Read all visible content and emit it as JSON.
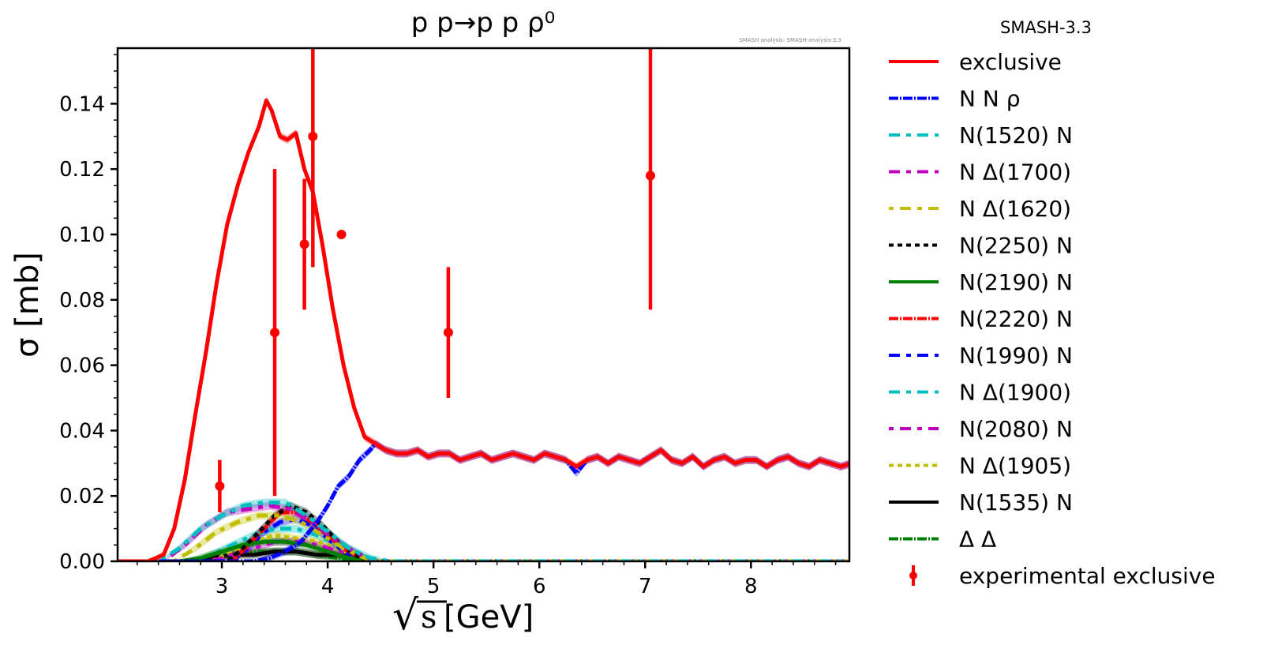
{
  "chart_data": {
    "type": "line",
    "title": "p p→p p ρ⁰",
    "watermark": "SMASH analysis: SMASH-analysis-3.3",
    "xlabel_radical": "√",
    "xlabel_var": "s",
    "xlabel_unit": "[GeV]",
    "ylabel": "σ [mb]",
    "xlim": [
      2.015,
      8.93
    ],
    "ylim": [
      0.0,
      0.157
    ],
    "x_ticks": [
      3,
      4,
      5,
      6,
      7,
      8
    ],
    "x_tick_labels": [
      "3",
      "4",
      "5",
      "6",
      "7",
      "8"
    ],
    "x_minor_step": 0.2,
    "y_ticks": [
      0.0,
      0.02,
      0.04,
      0.06,
      0.08,
      0.1,
      0.12,
      0.14
    ],
    "y_tick_labels": [
      "0.00",
      "0.02",
      "0.04",
      "0.06",
      "0.08",
      "0.10",
      "0.12",
      "0.14"
    ],
    "y_minor_step": 0.005,
    "grid": false,
    "legend_title": "SMASH-3.3",
    "legend_placement": "outside-right",
    "series": [
      {
        "name": "exclusive",
        "color": "#ff0000",
        "dash": "solid",
        "x": [
          2.0,
          2.3,
          2.45,
          2.55,
          2.65,
          2.75,
          2.85,
          2.95,
          3.05,
          3.15,
          3.25,
          3.35,
          3.42,
          3.47,
          3.55,
          3.62,
          3.7,
          3.78,
          3.86,
          3.95,
          4.05,
          4.15,
          4.25,
          4.35,
          4.45,
          4.55,
          4.65,
          4.75,
          4.85,
          4.95,
          5.05,
          5.15,
          5.25,
          5.35,
          5.45,
          5.55,
          5.65,
          5.75,
          5.85,
          5.95,
          6.05,
          6.15,
          6.25,
          6.35,
          6.45,
          6.55,
          6.65,
          6.75,
          6.85,
          6.95,
          7.05,
          7.15,
          7.25,
          7.35,
          7.45,
          7.55,
          7.65,
          7.75,
          7.85,
          7.95,
          8.05,
          8.15,
          8.25,
          8.35,
          8.45,
          8.55,
          8.65,
          8.75,
          8.85,
          8.95
        ],
        "y": [
          0.0,
          0.0,
          0.002,
          0.01,
          0.025,
          0.045,
          0.064,
          0.085,
          0.103,
          0.115,
          0.125,
          0.133,
          0.141,
          0.138,
          0.13,
          0.129,
          0.131,
          0.12,
          0.113,
          0.097,
          0.077,
          0.06,
          0.047,
          0.038,
          0.036,
          0.034,
          0.033,
          0.033,
          0.034,
          0.032,
          0.033,
          0.033,
          0.031,
          0.032,
          0.033,
          0.031,
          0.032,
          0.033,
          0.032,
          0.031,
          0.033,
          0.032,
          0.031,
          0.029,
          0.031,
          0.032,
          0.03,
          0.032,
          0.031,
          0.03,
          0.032,
          0.034,
          0.031,
          0.03,
          0.032,
          0.029,
          0.031,
          0.032,
          0.03,
          0.031,
          0.031,
          0.029,
          0.031,
          0.032,
          0.03,
          0.029,
          0.031,
          0.03,
          0.029,
          0.03
        ]
      },
      {
        "name": "N N ρ",
        "color": "#0000ff",
        "dash": "12 2 2 2",
        "x": [
          2.0,
          3.3,
          3.45,
          3.6,
          3.75,
          3.9,
          4.0,
          4.1,
          4.2,
          4.3,
          4.4,
          4.45,
          4.55,
          4.65,
          4.75,
          4.85,
          4.95,
          5.05,
          5.15,
          5.25,
          5.35,
          5.45,
          5.55,
          5.65,
          5.75,
          5.85,
          5.95,
          6.05,
          6.15,
          6.25,
          6.35,
          6.45,
          6.55,
          6.65,
          6.75,
          6.85,
          6.95,
          7.05,
          7.15,
          7.25,
          7.35,
          7.45,
          7.55,
          7.65,
          7.75,
          7.85,
          7.95,
          8.05,
          8.15,
          8.25,
          8.35,
          8.45,
          8.55,
          8.65,
          8.75,
          8.85,
          8.95
        ],
        "y": [
          0.0,
          0.0,
          0.001,
          0.003,
          0.006,
          0.012,
          0.017,
          0.023,
          0.026,
          0.031,
          0.034,
          0.036,
          0.034,
          0.033,
          0.033,
          0.034,
          0.032,
          0.033,
          0.033,
          0.031,
          0.032,
          0.033,
          0.031,
          0.032,
          0.033,
          0.032,
          0.031,
          0.033,
          0.032,
          0.031,
          0.027,
          0.031,
          0.032,
          0.03,
          0.032,
          0.031,
          0.03,
          0.032,
          0.034,
          0.031,
          0.03,
          0.032,
          0.029,
          0.031,
          0.032,
          0.03,
          0.031,
          0.031,
          0.029,
          0.031,
          0.032,
          0.03,
          0.029,
          0.031,
          0.03,
          0.029,
          0.03
        ]
      },
      {
        "name": "N(1520) N",
        "color": "#00bfbf",
        "dash": "14 8 6 8",
        "x": [
          2.0,
          2.4,
          2.6,
          2.8,
          3.0,
          3.2,
          3.4,
          3.6,
          3.8,
          4.0,
          4.2,
          4.4,
          4.6,
          8.95
        ],
        "y": [
          0.0,
          0.0,
          0.004,
          0.01,
          0.014,
          0.017,
          0.018,
          0.018,
          0.014,
          0.009,
          0.004,
          0.001,
          0.0,
          0.0
        ]
      },
      {
        "name": "N Δ(1700)",
        "color": "#bf00bf",
        "dash": "14 8 6 8",
        "x": [
          2.0,
          2.45,
          2.65,
          2.85,
          3.05,
          3.25,
          3.45,
          3.65,
          3.85,
          4.05,
          4.25,
          4.45,
          8.95
        ],
        "y": [
          0.0,
          0.0,
          0.005,
          0.011,
          0.015,
          0.016,
          0.017,
          0.016,
          0.012,
          0.007,
          0.003,
          0.0,
          0.0
        ]
      },
      {
        "name": "N Δ(1620)",
        "color": "#bfbf00",
        "dash": "6 8 14 8",
        "x": [
          2.0,
          2.55,
          2.75,
          2.95,
          3.15,
          3.35,
          3.55,
          3.75,
          3.95,
          4.15,
          4.35,
          4.5,
          8.95
        ],
        "y": [
          0.0,
          0.0,
          0.004,
          0.009,
          0.012,
          0.014,
          0.014,
          0.012,
          0.008,
          0.004,
          0.001,
          0.0,
          0.0
        ]
      },
      {
        "name": "N(2250) N",
        "color": "#000000",
        "dash": "6 5",
        "x": [
          2.0,
          3.05,
          3.2,
          3.35,
          3.5,
          3.65,
          3.8,
          3.95,
          4.1,
          4.25,
          4.4,
          8.95
        ],
        "y": [
          0.0,
          0.0,
          0.004,
          0.009,
          0.014,
          0.017,
          0.015,
          0.011,
          0.006,
          0.002,
          0.0,
          0.0
        ]
      },
      {
        "name": "N(2190) N",
        "color": "#008000",
        "dash": "solid",
        "x": [
          2.0,
          2.6,
          2.8,
          3.0,
          3.2,
          3.4,
          3.6,
          3.8,
          4.0,
          4.2,
          4.4,
          8.95
        ],
        "y": [
          0.0,
          0.0,
          0.001,
          0.003,
          0.005,
          0.006,
          0.006,
          0.005,
          0.003,
          0.001,
          0.0,
          0.0
        ]
      },
      {
        "name": "N(2220) N",
        "color": "#ff0000",
        "dash": "12 2 2 2",
        "x": [
          2.0,
          3.1,
          3.25,
          3.4,
          3.55,
          3.7,
          3.85,
          4.0,
          4.15,
          4.3,
          4.45,
          8.95
        ],
        "y": [
          0.0,
          0.0,
          0.005,
          0.01,
          0.015,
          0.015,
          0.012,
          0.008,
          0.004,
          0.001,
          0.0,
          0.0
        ]
      },
      {
        "name": "N(1990) N",
        "color": "#0000ff",
        "dash": "14 8 6 8",
        "x": [
          2.0,
          3.1,
          3.25,
          3.4,
          3.55,
          3.7,
          3.85,
          4.0,
          4.15,
          4.3,
          4.45,
          8.95
        ],
        "y": [
          0.0,
          0.0,
          0.004,
          0.009,
          0.012,
          0.013,
          0.011,
          0.007,
          0.003,
          0.001,
          0.0,
          0.0
        ]
      },
      {
        "name": "N Δ(1900)",
        "color": "#00bfbf",
        "dash": "14 8 6 8",
        "x": [
          2.0,
          2.7,
          2.9,
          3.1,
          3.3,
          3.5,
          3.7,
          3.9,
          4.1,
          4.3,
          4.45,
          8.95
        ],
        "y": [
          0.0,
          0.0,
          0.002,
          0.005,
          0.008,
          0.01,
          0.01,
          0.008,
          0.005,
          0.002,
          0.0,
          0.0
        ]
      },
      {
        "name": "N(2080) N",
        "color": "#bf00bf",
        "dash": "6 8 14 8",
        "x": [
          2.0,
          2.9,
          3.1,
          3.3,
          3.5,
          3.7,
          3.9,
          4.1,
          4.3,
          4.45,
          8.95
        ],
        "y": [
          0.0,
          0.0,
          0.002,
          0.004,
          0.006,
          0.006,
          0.005,
          0.003,
          0.001,
          0.0,
          0.0
        ]
      },
      {
        "name": "N Δ(1905)",
        "color": "#bfbf00",
        "dash": "6 5",
        "x": [
          2.0,
          2.9,
          3.1,
          3.3,
          3.5,
          3.7,
          3.9,
          4.1,
          4.3,
          4.45,
          8.95
        ],
        "y": [
          0.0,
          0.0,
          0.003,
          0.006,
          0.008,
          0.007,
          0.006,
          0.004,
          0.001,
          0.0,
          0.0
        ]
      },
      {
        "name": "N(1535) N",
        "color": "#000000",
        "dash": "solid",
        "x": [
          2.0,
          2.7,
          2.9,
          3.1,
          3.3,
          3.5,
          3.7,
          3.9,
          4.1,
          4.3,
          4.45,
          8.95
        ],
        "y": [
          0.0,
          0.0,
          0.001,
          0.002,
          0.002,
          0.003,
          0.003,
          0.002,
          0.002,
          0.001,
          0.0,
          0.0
        ]
      },
      {
        "name": "Δ Δ",
        "color": "#008000",
        "dash": "12 2 2 2",
        "x": [
          2.0,
          2.7,
          2.9,
          3.1,
          3.3,
          3.5,
          3.7,
          3.9,
          4.1,
          4.3,
          4.45,
          8.95
        ],
        "y": [
          0.0,
          0.0,
          0.001,
          0.002,
          0.003,
          0.003,
          0.003,
          0.002,
          0.001,
          0.0,
          0.0,
          0.0
        ]
      }
    ],
    "experimental": {
      "name": "experimental exclusive",
      "color": "#ff0000",
      "points": [
        {
          "x": 2.98,
          "y": 0.023,
          "ylow": 0.015,
          "yhigh": 0.031
        },
        {
          "x": 3.5,
          "y": 0.07,
          "ylow": 0.02,
          "yhigh": 0.12
        },
        {
          "x": 3.78,
          "y": 0.097,
          "ylow": 0.077,
          "yhigh": 0.117
        },
        {
          "x": 3.86,
          "y": 0.13,
          "ylow": 0.09,
          "yhigh": 0.17
        },
        {
          "x": 4.13,
          "y": 0.1,
          "ylow": 0.1,
          "yhigh": 0.1
        },
        {
          "x": 5.14,
          "y": 0.07,
          "ylow": 0.05,
          "yhigh": 0.09
        },
        {
          "x": 7.05,
          "y": 0.118,
          "ylow": 0.077,
          "yhigh": 0.159
        }
      ]
    }
  }
}
